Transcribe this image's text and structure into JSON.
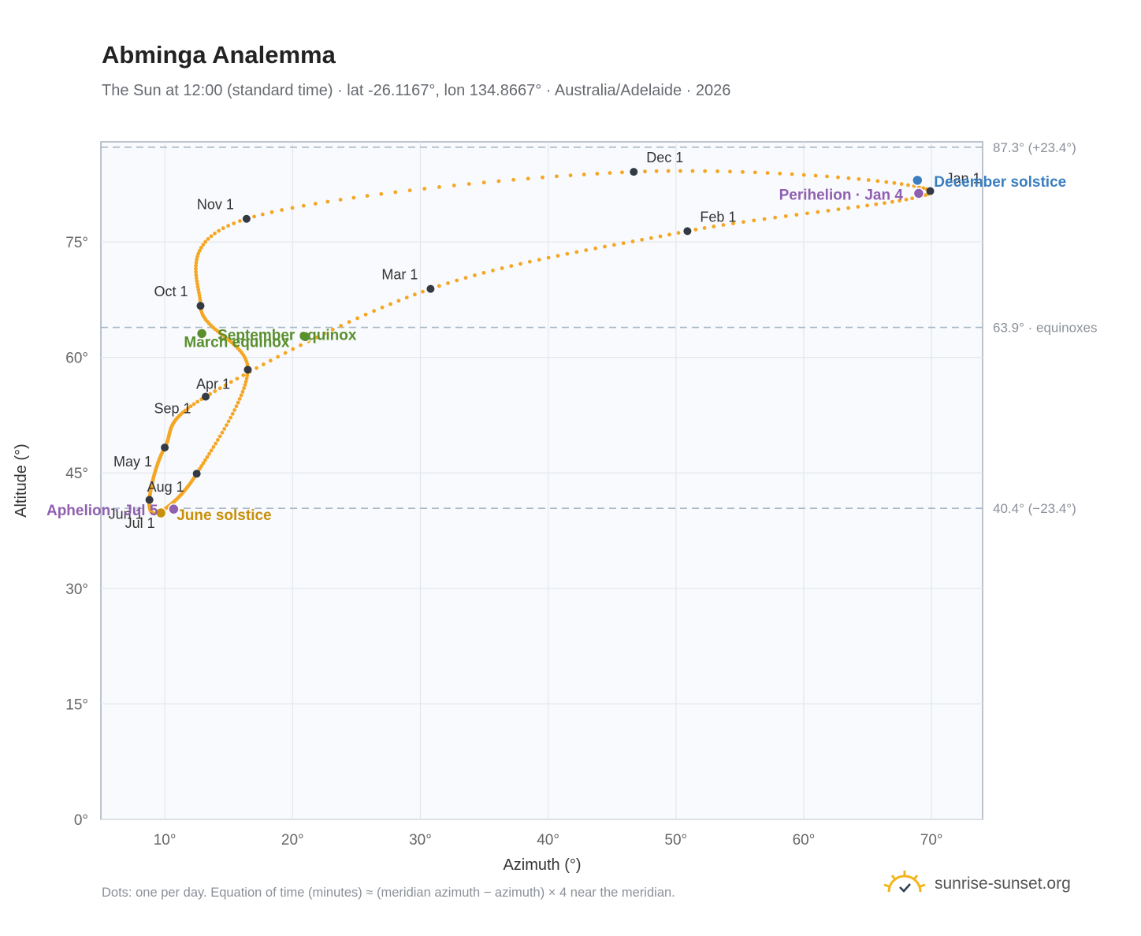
{
  "header": {
    "title": "Abminga Analemma",
    "subtitle": "The Sun at 12:00 (standard time) · lat -26.1167°, lon 134.8667° · Australia/Adelaide · 2026"
  },
  "footer": {
    "note": "Dots: one per day. Equation of time (minutes) ≈ (meridian azimuth − azimuth) × 4 near the meridian.",
    "brand": "sunrise-sunset.org"
  },
  "colors": {
    "curve": "#f5a623",
    "month_dot": "#333a44",
    "equinox": "#5a8f2e",
    "june_solstice": "#c8900c",
    "december_solstice": "#3a7fc1",
    "apsis": "#9060b0",
    "reference_line": "#a9b8c6",
    "plot_bg": "#f8fafd"
  },
  "chart_data": {
    "type": "scatter",
    "title": "Abminga Analemma",
    "xlabel": "Azimuth (°)",
    "ylabel": "Altitude (°)",
    "xlim": [
      5,
      74
    ],
    "ylim": [
      0,
      88
    ],
    "grid": true,
    "x_ticks": [
      10,
      20,
      30,
      40,
      50,
      60,
      70
    ],
    "y_ticks": [
      0,
      15,
      30,
      45,
      60,
      75
    ],
    "reference_lines": [
      {
        "y": 87.3,
        "label": "87.3° (+23.4°)"
      },
      {
        "y": 63.9,
        "label": "63.9° · equinoxes"
      },
      {
        "y": 40.4,
        "label": "40.4° (−23.4°)"
      }
    ],
    "month_markers": [
      {
        "label": "Jan 1",
        "x": 69.9,
        "y": 81.6
      },
      {
        "label": "Feb 1",
        "x": 50.9,
        "y": 76.4
      },
      {
        "label": "Mar 1",
        "x": 30.8,
        "y": 68.9
      },
      {
        "label": "Apr 1",
        "x": 13.2,
        "y": 54.9
      },
      {
        "label": "May 1",
        "x": 10.0,
        "y": 48.3
      },
      {
        "label": "Jun 1",
        "x": 8.8,
        "y": 41.5
      },
      {
        "label": "Jul 1",
        "x": 9.6,
        "y": 39.9
      },
      {
        "label": "Aug 1",
        "x": 12.5,
        "y": 44.9
      },
      {
        "label": "Sep 1",
        "x": 16.5,
        "y": 58.4
      },
      {
        "label": "Oct 1",
        "x": 12.8,
        "y": 66.7
      },
      {
        "label": "Nov 1",
        "x": 16.4,
        "y": 78.0
      },
      {
        "label": "Dec 1",
        "x": 46.7,
        "y": 84.1
      }
    ],
    "events": [
      {
        "label": "December solstice",
        "x": 68.9,
        "y": 83.0,
        "kind": "december_solstice"
      },
      {
        "label": "Perihelion · Jan 4",
        "x": 69.0,
        "y": 81.3,
        "kind": "apsis"
      },
      {
        "label": "March equinox",
        "x": 21.0,
        "y": 62.7,
        "kind": "equinox"
      },
      {
        "label": "September equinox",
        "x": 12.9,
        "y": 63.1,
        "kind": "equinox"
      },
      {
        "label": "June solstice",
        "x": 9.7,
        "y": 39.8,
        "kind": "june_solstice"
      },
      {
        "label": "Aphelion · Jul 5",
        "x": 10.7,
        "y": 40.3,
        "kind": "apsis"
      }
    ]
  }
}
